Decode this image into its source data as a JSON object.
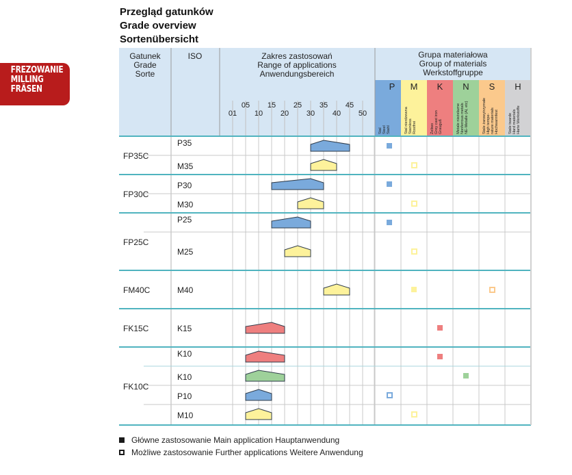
{
  "badge": {
    "lines": [
      "FREZOWANIE",
      "MILLING",
      "FRÄSEN"
    ]
  },
  "titles": [
    "Przegląd gatunków",
    "Grade overview",
    "Sortenübersicht"
  ],
  "colors": {
    "header_bg": "#d6e6f4",
    "divider": "#4fb3bf",
    "grid": "#c8c8c8",
    "P": "#7aaadc",
    "M": "#fdf29b",
    "K": "#ee7f7f",
    "N": "#9ed19a",
    "S": "#fbc98c",
    "H": "#d2d2d4",
    "badge": "#b81c1c"
  },
  "chart_data": {
    "type": "table",
    "title": "Przegląd gatunków / Grade overview / Sortenübersicht",
    "columns": {
      "grade": [
        "Gatunek",
        "Grade",
        "Sorte"
      ],
      "iso": "ISO",
      "range": [
        "Zakres zastosowań",
        "Range of applications",
        "Anwendungsbereich"
      ],
      "materials": [
        "Grupa materiałowa",
        "Group of materials",
        "Werkstoffgruppe"
      ]
    },
    "range_ticks": [
      "01",
      "05",
      "10",
      "15",
      "20",
      "25",
      "30",
      "35",
      "40",
      "45",
      "50"
    ],
    "material_groups": [
      {
        "code": "P",
        "desc": [
          "Stal",
          "Steel",
          "Stahl"
        ]
      },
      {
        "code": "M",
        "desc": [
          "Stal nierdzewna",
          "Stainless",
          "Rostfrei"
        ]
      },
      {
        "code": "K",
        "desc": [
          "Żeliwo",
          "Grey cast iron",
          "Grauguß"
        ]
      },
      {
        "code": "N",
        "desc": [
          "Metale nieżelazne",
          "Nonferrous metals",
          "NE-Metalle (Al, etc)"
        ]
      },
      {
        "code": "S",
        "desc": [
          "Stale żarowytrzymałe",
          "High tempe-",
          "rature materials",
          "Hochwarmfest"
        ]
      },
      {
        "code": "H",
        "desc": [
          "Stale twarde",
          "Hard materials",
          "Harte Werkstoffe"
        ]
      }
    ],
    "grades": [
      {
        "grade": "FP35C",
        "rows": [
          {
            "iso": "P35",
            "group": "P",
            "range": {
              "min": 30,
              "peak": 35,
              "max": 45
            },
            "apps": {
              "P": "main"
            }
          },
          {
            "iso": "M35",
            "group": "M",
            "range": {
              "min": 30,
              "peak": 35,
              "max": 40
            },
            "apps": {
              "M": "further"
            }
          }
        ]
      },
      {
        "grade": "FP30C",
        "rows": [
          {
            "iso": "P30",
            "group": "P",
            "range": {
              "min": 15,
              "peak": 30,
              "max": 35
            },
            "apps": {
              "P": "main"
            }
          },
          {
            "iso": "M30",
            "group": "M",
            "range": {
              "min": 25,
              "peak": 30,
              "max": 35
            },
            "apps": {
              "M": "further"
            }
          }
        ]
      },
      {
        "grade": "FP25C",
        "rows": [
          {
            "iso": "P25",
            "group": "P",
            "range": {
              "min": 15,
              "peak": 25,
              "max": 30
            },
            "apps": {
              "P": "main"
            }
          },
          {
            "iso": "M25",
            "group": "M",
            "range": {
              "min": 20,
              "peak": 25,
              "max": 30
            },
            "apps": {
              "M": "further"
            }
          }
        ]
      },
      {
        "grade": "FM40C",
        "rows": [
          {
            "iso": "M40",
            "group": "M",
            "range": {
              "min": 35,
              "peak": 40,
              "max": 45
            },
            "apps": {
              "M": "main",
              "S": "further"
            }
          }
        ]
      },
      {
        "grade": "FK15C",
        "rows": [
          {
            "iso": "K15",
            "group": "K",
            "range": {
              "min": 5,
              "peak": 15,
              "max": 20
            },
            "apps": {
              "K": "main"
            }
          }
        ]
      },
      {
        "grade": "FK10C",
        "rows": [
          {
            "iso": "K10",
            "group": "K",
            "range": {
              "min": 5,
              "peak": 10,
              "max": 20
            },
            "apps": {
              "K": "main"
            }
          },
          {
            "iso": "K10",
            "group": "N",
            "range": {
              "min": 5,
              "peak": 10,
              "max": 20
            },
            "apps": {
              "N": "main"
            }
          },
          {
            "iso": "P10",
            "group": "P",
            "range": {
              "min": 5,
              "peak": 10,
              "max": 15
            },
            "apps": {
              "P": "further"
            }
          },
          {
            "iso": "M10",
            "group": "M",
            "range": {
              "min": 5,
              "peak": 10,
              "max": 15
            },
            "apps": {
              "M": "further"
            }
          }
        ]
      }
    ],
    "legend": [
      {
        "type": "main",
        "text": "Główne zastosowanie Main application Hauptanwendung"
      },
      {
        "type": "further",
        "text": "Możliwe zastosowanie Further applications Weitere Anwendung"
      }
    ]
  }
}
